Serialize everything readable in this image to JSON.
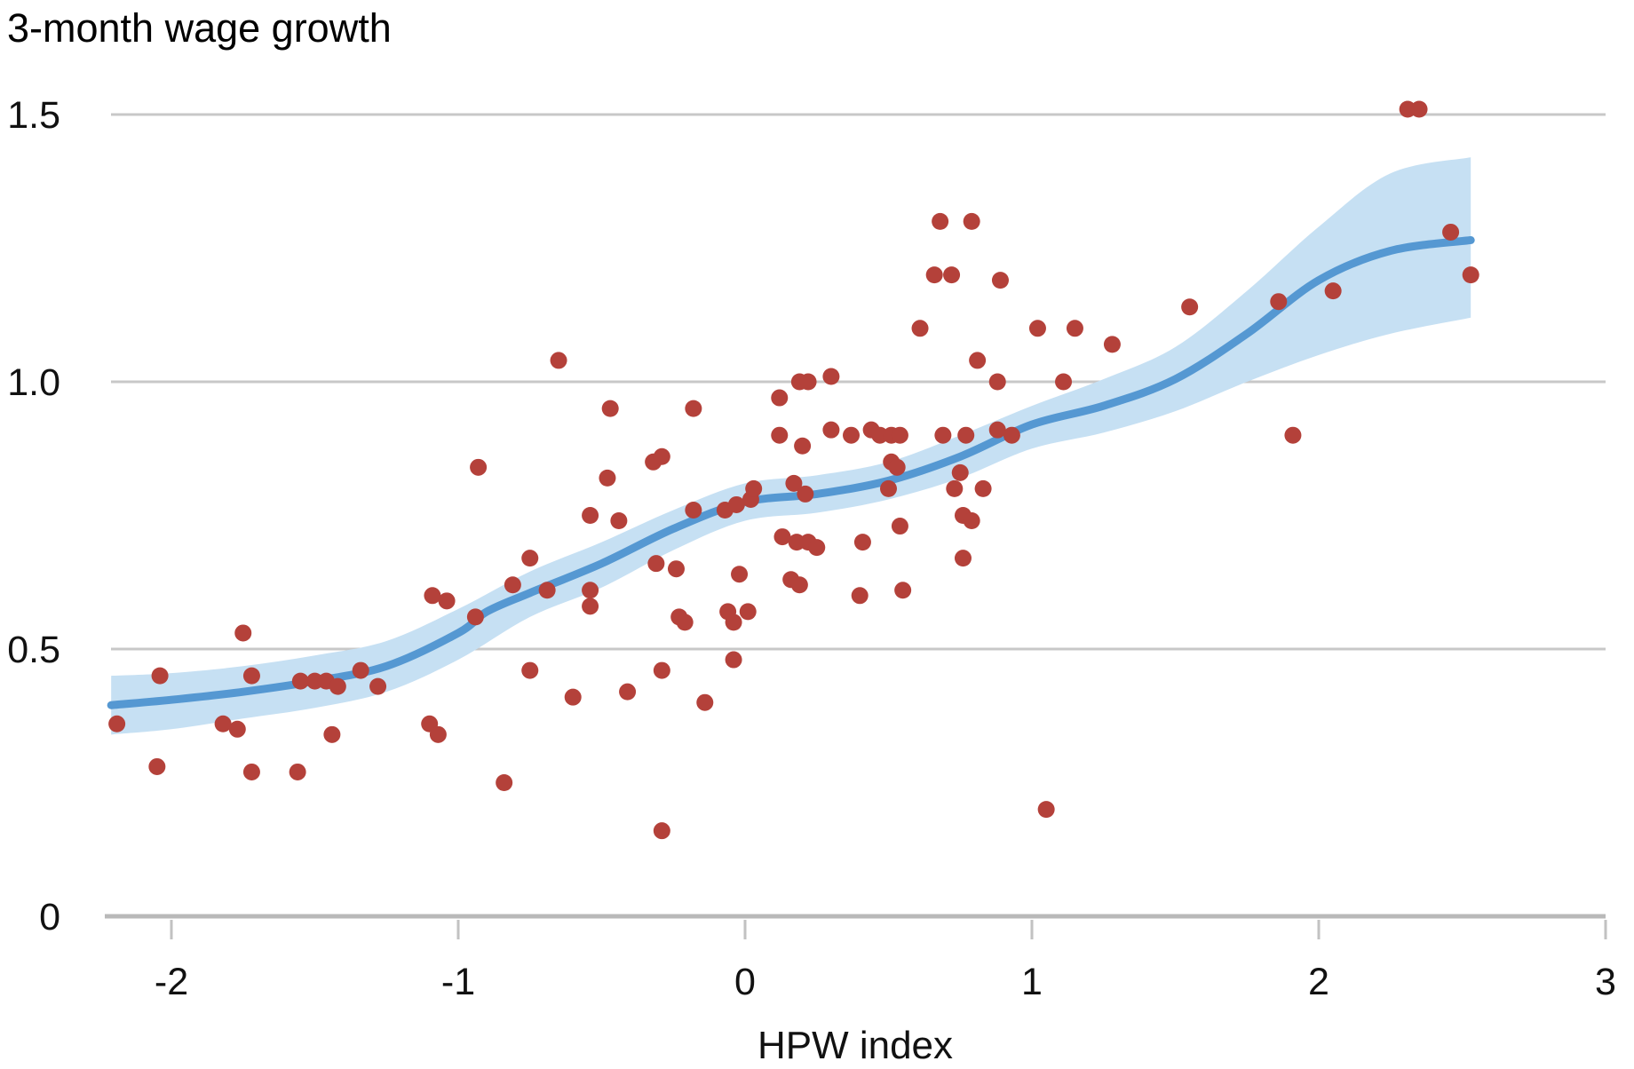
{
  "chart_data": {
    "type": "scatter",
    "title": "3-month wage growth",
    "xlabel": "HPW index",
    "ylabel": "",
    "xlim": [
      -2.35,
      3.0
    ],
    "ylim": [
      0,
      1.55
    ],
    "x_ticks": [
      -2,
      -1,
      0,
      1,
      2,
      3
    ],
    "y_ticks": [
      {
        "v": 0,
        "label": "0"
      },
      {
        "v": 0.5,
        "label": "0.5"
      },
      {
        "v": 1.0,
        "label": "1.0"
      },
      {
        "v": 1.5,
        "label": "1.5"
      }
    ],
    "grid": "horizontal",
    "legend": "none",
    "colors": {
      "point": "#b4413a",
      "trend_line": "#5598d2",
      "confidence_band": "#c6e0f3",
      "gridline": "#c8c8c8",
      "axis": "#b9b9b9",
      "tick": "#c2c2c2",
      "text": "#111111"
    },
    "points": [
      [
        -2.19,
        0.36
      ],
      [
        -2.05,
        0.28
      ],
      [
        -2.04,
        0.45
      ],
      [
        -1.82,
        0.36
      ],
      [
        -1.77,
        0.35
      ],
      [
        -1.75,
        0.53
      ],
      [
        -1.72,
        0.45
      ],
      [
        -1.72,
        0.27
      ],
      [
        -1.56,
        0.27
      ],
      [
        -1.55,
        0.44
      ],
      [
        -1.5,
        0.44
      ],
      [
        -1.46,
        0.44
      ],
      [
        -1.42,
        0.43
      ],
      [
        -1.44,
        0.34
      ],
      [
        -1.34,
        0.46
      ],
      [
        -1.28,
        0.43
      ],
      [
        -1.1,
        0.36
      ],
      [
        -1.09,
        0.6
      ],
      [
        -1.07,
        0.34
      ],
      [
        -1.04,
        0.59
      ],
      [
        -0.94,
        0.56
      ],
      [
        -0.93,
        0.84
      ],
      [
        -0.84,
        0.25
      ],
      [
        -0.81,
        0.62
      ],
      [
        -0.75,
        0.67
      ],
      [
        -0.75,
        0.46
      ],
      [
        -0.69,
        0.61
      ],
      [
        -0.65,
        1.04
      ],
      [
        -0.6,
        0.41
      ],
      [
        -0.54,
        0.75
      ],
      [
        -0.54,
        0.61
      ],
      [
        -0.54,
        0.58
      ],
      [
        -0.48,
        0.82
      ],
      [
        -0.47,
        0.95
      ],
      [
        -0.44,
        0.74
      ],
      [
        -0.41,
        0.42
      ],
      [
        -0.32,
        0.85
      ],
      [
        -0.29,
        0.86
      ],
      [
        -0.31,
        0.66
      ],
      [
        -0.29,
        0.46
      ],
      [
        -0.29,
        0.16
      ],
      [
        -0.24,
        0.65
      ],
      [
        -0.23,
        0.56
      ],
      [
        -0.21,
        0.55
      ],
      [
        -0.18,
        0.95
      ],
      [
        -0.18,
        0.76
      ],
      [
        -0.14,
        0.4
      ],
      [
        -0.07,
        0.76
      ],
      [
        -0.06,
        0.57
      ],
      [
        -0.04,
        0.55
      ],
      [
        -0.04,
        0.48
      ],
      [
        -0.03,
        0.77
      ],
      [
        -0.02,
        0.64
      ],
      [
        0.01,
        0.57
      ],
      [
        0.02,
        0.78
      ],
      [
        0.03,
        0.8
      ],
      [
        0.12,
        0.97
      ],
      [
        0.12,
        0.9
      ],
      [
        0.13,
        0.71
      ],
      [
        0.16,
        0.63
      ],
      [
        0.17,
        0.81
      ],
      [
        0.18,
        0.7
      ],
      [
        0.19,
        1.0
      ],
      [
        0.19,
        0.62
      ],
      [
        0.2,
        0.88
      ],
      [
        0.21,
        0.79
      ],
      [
        0.22,
        1.0
      ],
      [
        0.22,
        0.7
      ],
      [
        0.25,
        0.69
      ],
      [
        0.3,
        1.01
      ],
      [
        0.3,
        0.91
      ],
      [
        0.37,
        0.9
      ],
      [
        0.4,
        0.6
      ],
      [
        0.41,
        0.7
      ],
      [
        0.44,
        0.91
      ],
      [
        0.47,
        0.9
      ],
      [
        0.5,
        0.8
      ],
      [
        0.51,
        0.9
      ],
      [
        0.51,
        0.85
      ],
      [
        0.53,
        0.84
      ],
      [
        0.54,
        0.9
      ],
      [
        0.54,
        0.73
      ],
      [
        0.55,
        0.61
      ],
      [
        0.61,
        1.1
      ],
      [
        0.66,
        1.2
      ],
      [
        0.68,
        1.3
      ],
      [
        0.69,
        0.9
      ],
      [
        0.72,
        1.2
      ],
      [
        0.73,
        0.8
      ],
      [
        0.75,
        0.83
      ],
      [
        0.76,
        0.75
      ],
      [
        0.76,
        0.67
      ],
      [
        0.77,
        0.9
      ],
      [
        0.79,
        1.3
      ],
      [
        0.79,
        0.74
      ],
      [
        0.81,
        1.04
      ],
      [
        0.83,
        0.8
      ],
      [
        0.88,
        1.0
      ],
      [
        0.88,
        0.91
      ],
      [
        0.89,
        1.19
      ],
      [
        0.93,
        0.9
      ],
      [
        1.02,
        1.1
      ],
      [
        1.05,
        0.2
      ],
      [
        1.11,
        1.0
      ],
      [
        1.15,
        1.1
      ],
      [
        1.28,
        1.07
      ],
      [
        1.55,
        1.14
      ],
      [
        1.86,
        1.15
      ],
      [
        1.91,
        0.9
      ],
      [
        2.05,
        1.17
      ],
      [
        2.31,
        1.51
      ],
      [
        2.35,
        1.51
      ],
      [
        2.46,
        1.28
      ],
      [
        2.53,
        1.2
      ]
    ],
    "trend_line": [
      [
        -2.21,
        0.395
      ],
      [
        -2.0,
        0.405
      ],
      [
        -1.75,
        0.42
      ],
      [
        -1.5,
        0.44
      ],
      [
        -1.25,
        0.468
      ],
      [
        -1.0,
        0.53
      ],
      [
        -0.9,
        0.57
      ],
      [
        -0.75,
        0.605
      ],
      [
        -0.5,
        0.66
      ],
      [
        -0.25,
        0.725
      ],
      [
        0.0,
        0.775
      ],
      [
        0.25,
        0.79
      ],
      [
        0.5,
        0.815
      ],
      [
        0.75,
        0.86
      ],
      [
        1.0,
        0.92
      ],
      [
        1.25,
        0.955
      ],
      [
        1.5,
        1.005
      ],
      [
        1.75,
        1.09
      ],
      [
        2.0,
        1.19
      ],
      [
        2.25,
        1.245
      ],
      [
        2.53,
        1.265
      ]
    ],
    "band_upper": [
      [
        -2.21,
        0.45
      ],
      [
        -2.0,
        0.455
      ],
      [
        -1.75,
        0.468
      ],
      [
        -1.5,
        0.488
      ],
      [
        -1.25,
        0.515
      ],
      [
        -1.0,
        0.575
      ],
      [
        -0.75,
        0.645
      ],
      [
        -0.5,
        0.7
      ],
      [
        -0.25,
        0.76
      ],
      [
        0.0,
        0.81
      ],
      [
        0.25,
        0.825
      ],
      [
        0.5,
        0.85
      ],
      [
        0.75,
        0.9
      ],
      [
        1.0,
        0.955
      ],
      [
        1.25,
        1.005
      ],
      [
        1.5,
        1.065
      ],
      [
        1.75,
        1.17
      ],
      [
        2.0,
        1.29
      ],
      [
        2.25,
        1.39
      ],
      [
        2.53,
        1.42
      ]
    ],
    "band_lower": [
      [
        -2.21,
        0.34
      ],
      [
        -2.0,
        0.35
      ],
      [
        -1.75,
        0.37
      ],
      [
        -1.5,
        0.39
      ],
      [
        -1.25,
        0.42
      ],
      [
        -1.0,
        0.48
      ],
      [
        -0.75,
        0.56
      ],
      [
        -0.5,
        0.615
      ],
      [
        -0.25,
        0.685
      ],
      [
        0.0,
        0.74
      ],
      [
        0.25,
        0.755
      ],
      [
        0.5,
        0.78
      ],
      [
        0.75,
        0.82
      ],
      [
        1.0,
        0.875
      ],
      [
        1.25,
        0.905
      ],
      [
        1.5,
        0.945
      ],
      [
        1.75,
        1.0
      ],
      [
        2.0,
        1.05
      ],
      [
        2.25,
        1.09
      ],
      [
        2.53,
        1.12
      ]
    ]
  }
}
